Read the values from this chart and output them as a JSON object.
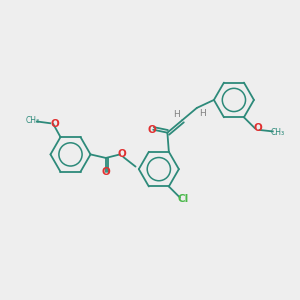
{
  "bg_color": "#eeeeee",
  "bond_color": "#2d8a7a",
  "oxygen_color": "#e03030",
  "chlorine_color": "#4ab84a",
  "hydrogen_color": "#808080",
  "lw": 1.3,
  "r_ring": 0.68,
  "xlim": [
    0,
    10
  ],
  "ylim": [
    0,
    10
  ]
}
